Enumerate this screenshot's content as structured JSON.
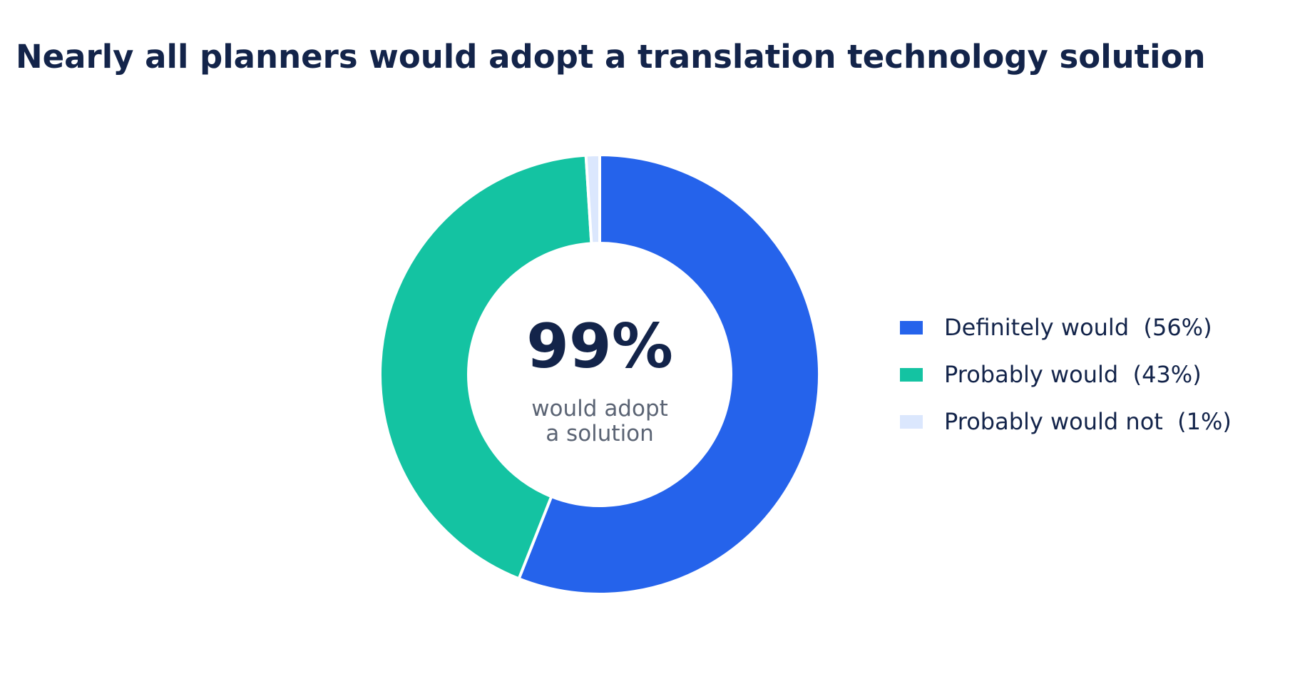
{
  "chart_data": {
    "type": "pie",
    "style": "donut",
    "title": "Nearly all planners would adopt a translation technology solution",
    "center": {
      "value": "99%",
      "caption": "would adopt\na solution"
    },
    "legend_position": "right",
    "slices": [
      {
        "label": "Definitely would",
        "value": 56,
        "display": "Definitely would  (56%)",
        "color": "#2563eb"
      },
      {
        "label": "Probably would",
        "value": 43,
        "display": "Probably would  (43%)",
        "color": "#14c3a2"
      },
      {
        "label": "Probably would not",
        "value": 1,
        "display": "Probably would not  (1%)",
        "color": "#dbe7fd"
      }
    ]
  }
}
